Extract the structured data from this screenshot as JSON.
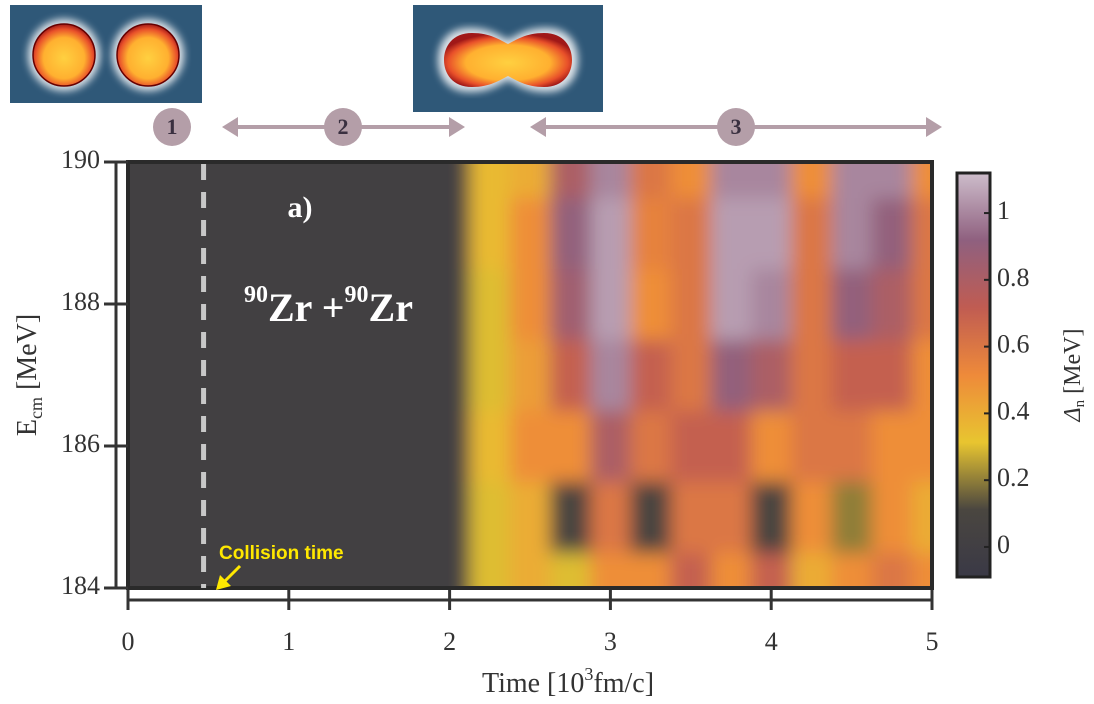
{
  "chart_data": {
    "type": "heatmap",
    "x": [
      0,
      0.25,
      0.5,
      0.75,
      1,
      1.25,
      1.5,
      1.75,
      2,
      2.25,
      2.5,
      2.75,
      3,
      3.25,
      3.5,
      3.75,
      4,
      4.25,
      4.5,
      4.75,
      5
    ],
    "y": [
      184,
      185,
      186,
      187,
      188,
      189,
      190
    ],
    "values": [
      [
        0.02,
        0.02,
        0.02,
        0.02,
        0.02,
        0.02,
        0.02,
        0.02,
        0.02,
        0.3,
        0.4,
        0.3,
        0.5,
        0.5,
        0.7,
        0.5,
        0.7,
        0.4,
        0.5,
        0.6,
        0.5
      ],
      [
        0.02,
        0.02,
        0.02,
        0.02,
        0.02,
        0.02,
        0.02,
        0.02,
        0.02,
        0.3,
        0.4,
        0.1,
        0.6,
        0.1,
        0.6,
        0.6,
        0.1,
        0.5,
        0.2,
        0.5,
        0.4
      ],
      [
        0.02,
        0.02,
        0.02,
        0.02,
        0.02,
        0.02,
        0.02,
        0.02,
        0.02,
        0.35,
        0.5,
        0.5,
        0.8,
        0.6,
        0.7,
        0.7,
        0.5,
        0.6,
        0.6,
        0.5,
        0.5
      ],
      [
        0.02,
        0.02,
        0.02,
        0.02,
        0.02,
        0.02,
        0.02,
        0.02,
        0.02,
        0.3,
        0.45,
        0.7,
        1,
        0.7,
        0.6,
        0.9,
        0.8,
        0.6,
        0.7,
        0.7,
        0.5
      ],
      [
        0.02,
        0.02,
        0.02,
        0.02,
        0.02,
        0.02,
        0.02,
        0.02,
        0.02,
        0.3,
        0.5,
        0.85,
        1.05,
        0.5,
        0.6,
        1.05,
        1,
        0.6,
        0.9,
        0.8,
        0.6
      ],
      [
        0.02,
        0.02,
        0.02,
        0.02,
        0.02,
        0.02,
        0.02,
        0.02,
        0.02,
        0.35,
        0.5,
        0.9,
        1.05,
        0.55,
        0.6,
        1.05,
        1.05,
        0.6,
        1,
        0.9,
        0.6
      ],
      [
        0.02,
        0.02,
        0.02,
        0.02,
        0.02,
        0.02,
        0.02,
        0.02,
        0.02,
        0.35,
        0.4,
        0.8,
        1,
        0.6,
        0.5,
        1,
        1,
        0.5,
        1,
        1,
        0.5
      ]
    ],
    "xlim": [
      0,
      5
    ],
    "ylim": [
      184,
      190
    ],
    "xticks": [
      0,
      1,
      2,
      3,
      4,
      5
    ],
    "yticks": [
      184,
      186,
      188,
      190
    ],
    "clim": [
      -0.09,
      1.12
    ],
    "cticks": [
      0,
      0.2,
      0.4,
      0.6,
      0.8,
      1
    ],
    "colormap": [
      "#3a3946",
      "#4a4640",
      "#e8c530",
      "#ee8a3a",
      "#c05c52",
      "#8f607f",
      "#cdbdcb"
    ],
    "xlabel": {
      "text": "Time [10",
      "sup": "3",
      "tail": "fm/c]"
    },
    "ylabel": {
      "text": "E",
      "sub": "cm",
      "tail": " [MeV]"
    },
    "clabel": {
      "text": "Δ",
      "sub": "n",
      "tail": " [MeV]"
    },
    "panel_label": "a)",
    "reaction": [
      "90",
      "Zr +",
      "90",
      "Zr"
    ],
    "collision_time": 0.47,
    "collision_label": "Collision time",
    "phases": [
      "1",
      "2",
      "3"
    ]
  }
}
